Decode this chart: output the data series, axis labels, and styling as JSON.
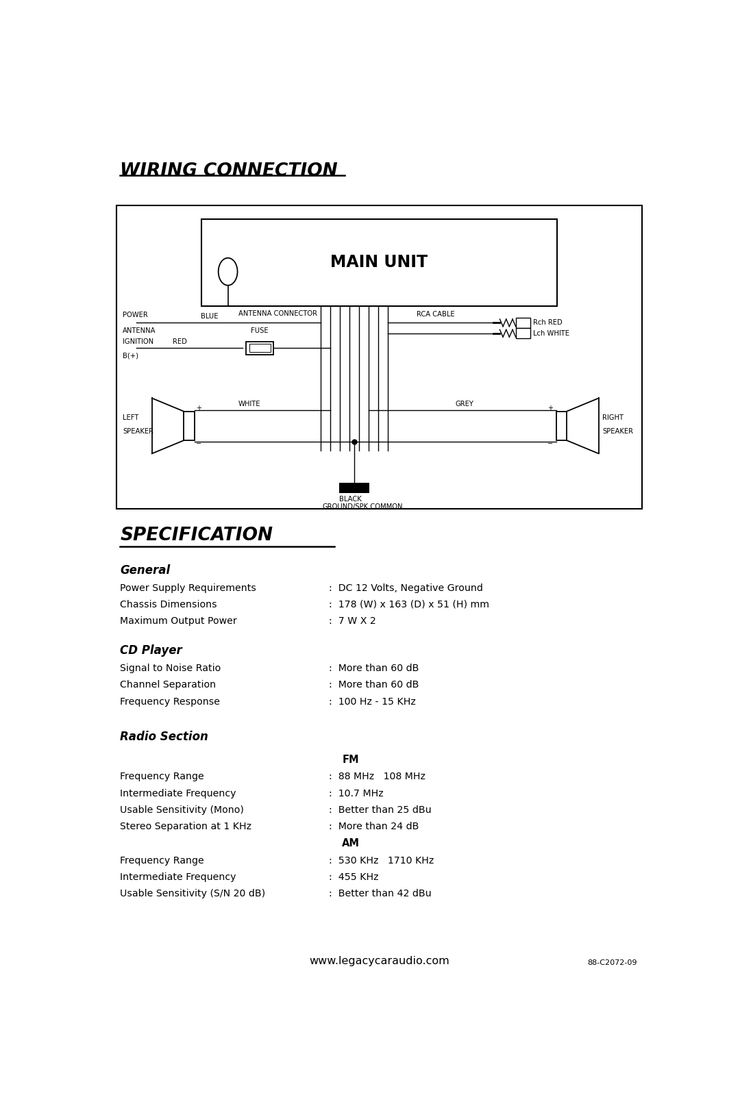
{
  "title_wiring": "WIRING CONNECTION",
  "title_spec": "SPECIFICATION",
  "main_unit_label": "MAIN UNIT",
  "bg_color": "#ffffff",
  "text_color": "#000000",
  "general_section": {
    "header": "General",
    "rows": [
      [
        "Power Supply Requirements",
        "DC 12 Volts, Negative Ground"
      ],
      [
        "Chassis Dimensions",
        "178 (W) x 163 (D) x 51 (H) mm"
      ],
      [
        "Maximum Output Power",
        "7 W X 2"
      ]
    ]
  },
  "cd_section": {
    "header": "CD Player",
    "rows": [
      [
        "Signal to Noise Ratio",
        "More than 60 dB"
      ],
      [
        "Channel Separation",
        "More than 60 dB"
      ],
      [
        "Frequency Response",
        "100 Hz - 15 KHz"
      ]
    ]
  },
  "radio_section": {
    "header": "Radio Section",
    "fm_header": "FM",
    "fm_rows": [
      [
        "Frequency Range",
        "88 MHz   108 MHz"
      ],
      [
        "Intermediate Frequency",
        "10.7 MHz"
      ],
      [
        "Usable Sensitivity (Mono)",
        "Better than 25 dBu"
      ],
      [
        "Stereo Separation at 1 KHz",
        "More than 24 dB"
      ]
    ],
    "am_header": "AM",
    "am_rows": [
      [
        "Frequency Range",
        "530 KHz   1710 KHz"
      ],
      [
        "Intermediate Frequency",
        "455 KHz"
      ],
      [
        "Usable Sensitivity (S/N 20 dB)",
        "Better than 42 dBu"
      ]
    ]
  },
  "footer_url": "www.legacycaraudio.com",
  "footer_code": "88-C2072-09"
}
